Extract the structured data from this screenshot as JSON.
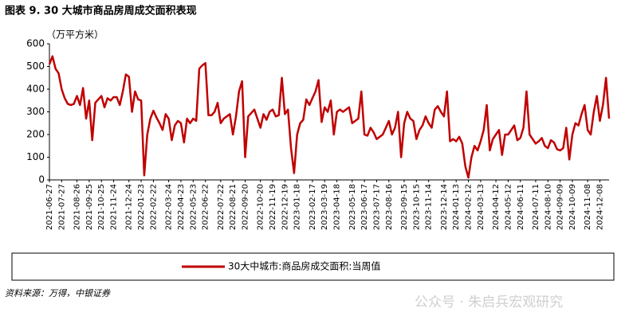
{
  "chart_data": {
    "type": "line",
    "title": "图表 9. 30 大城市商品房周成交面积表现",
    "ylabel": "（万平方米）",
    "source": "资料来源：万得，中银证券",
    "watermark": "公众号 · 朱启兵宏观研究",
    "ylim": [
      0,
      600
    ],
    "yticks": [
      0,
      100,
      200,
      300,
      400,
      500,
      600
    ],
    "grid": false,
    "legend": "bottom",
    "categories": [
      "2021-06-27",
      null,
      null,
      null,
      "2021-07-27",
      null,
      null,
      null,
      null,
      "2021-08-26",
      null,
      null,
      null,
      "2021-09-25",
      null,
      null,
      null,
      "2021-10-25",
      null,
      null,
      null,
      "2021-11-24",
      null,
      null,
      null,
      null,
      "2021-12-24",
      null,
      null,
      null,
      "2022-01-23",
      null,
      null,
      null,
      "2022-02-22",
      null,
      null,
      null,
      null,
      "2022-03-24",
      null,
      null,
      null,
      "2022-04-23",
      null,
      null,
      null,
      "2022-05-23",
      null,
      null,
      null,
      "2022-06-22",
      null,
      null,
      null,
      null,
      "2022-07-22",
      null,
      null,
      null,
      "2022-08-21",
      null,
      null,
      null,
      "2022-09-20",
      null,
      null,
      null,
      null,
      "2022-10-20",
      null,
      null,
      null,
      "2022-11-19",
      null,
      null,
      null,
      "2022-12-19",
      null,
      null,
      null,
      "2023-01-18",
      null,
      null,
      null,
      null,
      "2023-02-17",
      null,
      null,
      null,
      "2023-03-19",
      null,
      null,
      null,
      "2023-04-18",
      null,
      null,
      null,
      null,
      "2023-05-18",
      null,
      null,
      null,
      "2023-06-17",
      null,
      null,
      null,
      "2023-07-17",
      null,
      null,
      null,
      "2023-08-16",
      null,
      null,
      null,
      null,
      "2023-09-15",
      null,
      null,
      null,
      "2023-10-15",
      null,
      null,
      null,
      "2023-11-14",
      null,
      null,
      null,
      null,
      "2023-12-14",
      null,
      null,
      null,
      "2024-01-13",
      null,
      null,
      null,
      "2024-02-12",
      null,
      null,
      null,
      "2024-03-13",
      null,
      null,
      null,
      null,
      "2024-04-12",
      null,
      null,
      null,
      "2024-05-12",
      null,
      null,
      null,
      "2024-06-11",
      null,
      null,
      null,
      null,
      "2024-07-11",
      null,
      null,
      null,
      "2024-08-10",
      null,
      null,
      null,
      "2024-09-09",
      null,
      null,
      null,
      "2024-10-09",
      null,
      null,
      null,
      null,
      "2024-11-08",
      null,
      null,
      null,
      "2024-12-08",
      null,
      null,
      null
    ],
    "series": [
      {
        "name": "30大中城市:商品房成交面积:当周值",
        "color": "#c00000",
        "values": [
          510,
          545,
          490,
          470,
          400,
          360,
          335,
          330,
          335,
          370,
          330,
          405,
          270,
          350,
          175,
          340,
          355,
          370,
          320,
          360,
          350,
          365,
          365,
          330,
          390,
          465,
          455,
          300,
          390,
          355,
          350,
          20,
          200,
          270,
          305,
          275,
          250,
          220,
          290,
          270,
          175,
          240,
          260,
          250,
          165,
          270,
          250,
          270,
          260,
          490,
          505,
          515,
          285,
          285,
          300,
          340,
          250,
          270,
          280,
          290,
          200,
          280,
          390,
          435,
          100,
          280,
          295,
          310,
          270,
          230,
          290,
          265,
          300,
          310,
          280,
          285,
          450,
          290,
          310,
          140,
          30,
          200,
          250,
          265,
          355,
          330,
          360,
          390,
          440,
          255,
          320,
          300,
          350,
          200,
          300,
          310,
          300,
          310,
          320,
          250,
          260,
          270,
          390,
          200,
          195,
          230,
          210,
          180,
          190,
          200,
          230,
          260,
          200,
          230,
          300,
          100,
          250,
          300,
          270,
          260,
          180,
          220,
          240,
          280,
          250,
          230,
          310,
          325,
          300,
          280,
          390,
          170,
          180,
          170,
          190,
          160,
          60,
          10,
          100,
          150,
          130,
          170,
          220,
          330,
          130,
          180,
          200,
          220,
          110,
          200,
          200,
          220,
          240,
          175,
          185,
          230,
          390,
          200,
          180,
          160,
          170,
          185,
          150,
          140,
          175,
          165,
          135,
          130,
          140,
          230,
          90,
          200,
          250,
          240,
          290,
          330,
          220,
          200,
          300,
          370,
          260,
          330,
          450,
          270
        ]
      }
    ]
  }
}
